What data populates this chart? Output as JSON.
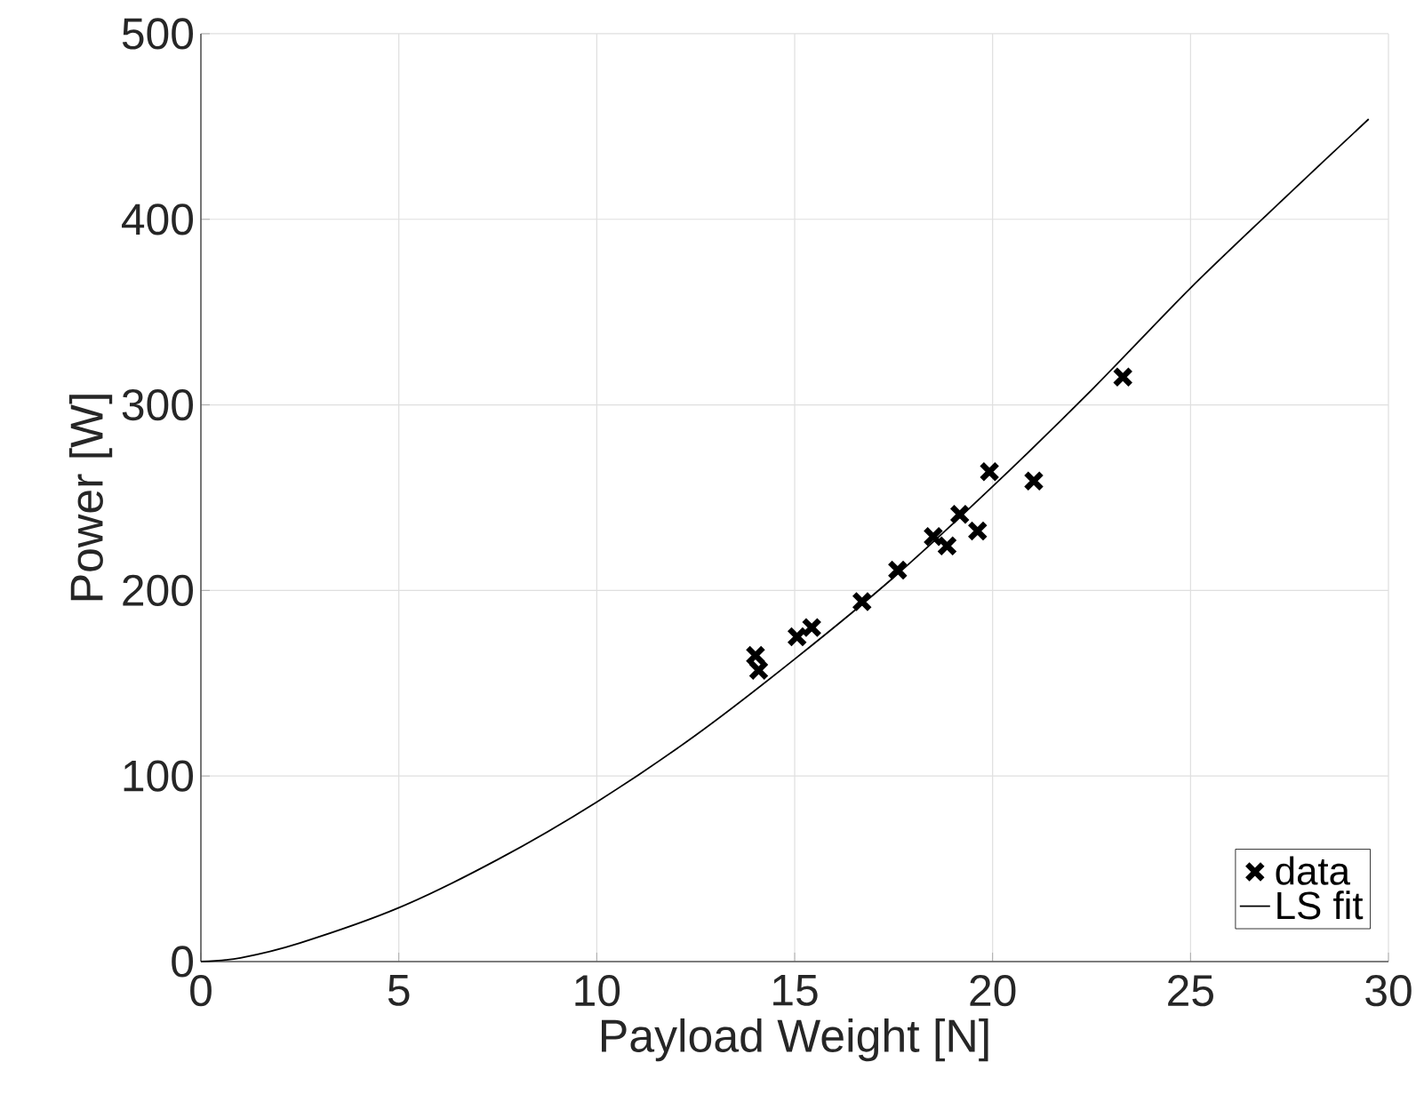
{
  "chart_data": {
    "type": "scatter",
    "xlabel": "Payload Weight [N]",
    "ylabel": "Power [W]",
    "xlim": [
      0,
      30
    ],
    "ylim": [
      0,
      500
    ],
    "xticks": [
      0,
      5,
      10,
      15,
      20,
      25,
      30
    ],
    "yticks": [
      0,
      100,
      200,
      300,
      400,
      500
    ],
    "grid": true,
    "legend": "bottom right",
    "series": [
      {
        "name": "data",
        "marker": "cross",
        "color": "#000000",
        "x": [
          23.29,
          19.92,
          21.04,
          19.17,
          19.62,
          18.5,
          18.85,
          17.6,
          16.7,
          15.43,
          15.06,
          14.01,
          14.09
        ],
        "values": [
          315,
          264,
          259,
          241,
          232,
          229,
          224,
          211,
          194,
          180,
          175,
          165,
          157
        ]
      },
      {
        "name": "LS fit",
        "type": "line",
        "marker": "none",
        "line_style": "solid",
        "color": "#000000",
        "x": [
          0,
          1,
          2.5,
          5,
          7.5,
          10,
          12.5,
          15,
          17.5,
          20,
          22.5,
          25,
          27.5,
          29.5
        ],
        "values": [
          0,
          2,
          10,
          29,
          55,
          86,
          122,
          163,
          207,
          256,
          308,
          363,
          414,
          454
        ]
      }
    ]
  }
}
